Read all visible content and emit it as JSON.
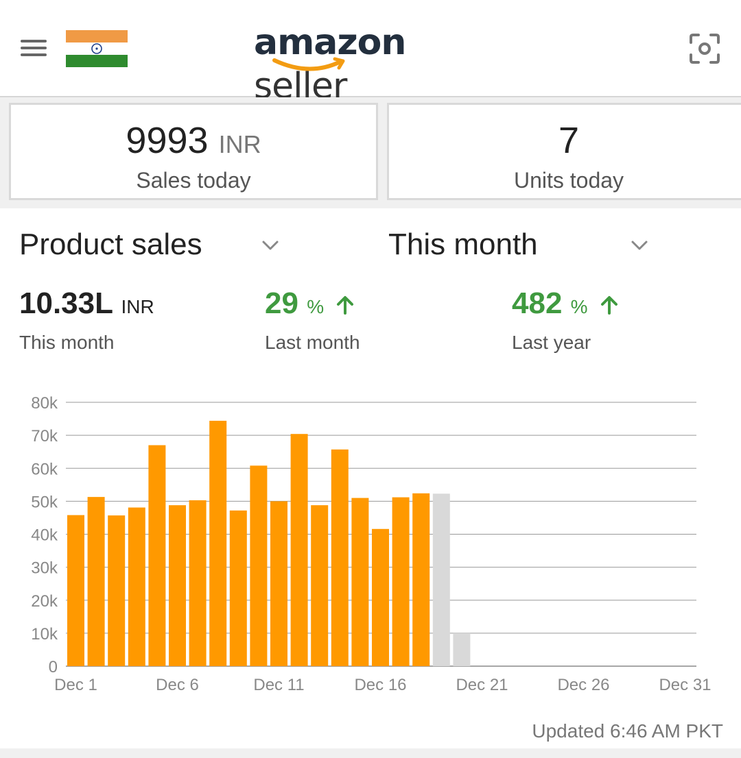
{
  "header": {
    "logo_primary": "amazon",
    "logo_secondary": "seller",
    "menu_icon": "hamburger-menu-icon",
    "flag_icon": "india-flag-icon",
    "scan_icon": "camera-scan-icon",
    "colors": {
      "logo_dark": "#232f3e",
      "smile": "#f39c12"
    }
  },
  "stats": {
    "sales": {
      "value": "9993",
      "unit": "INR",
      "label": "Sales today"
    },
    "units": {
      "value": "7",
      "label": "Units today"
    }
  },
  "selectors": {
    "metric": {
      "label": "Product sales",
      "icon": "chevron-down-icon"
    },
    "period": {
      "label": "This month",
      "icon": "chevron-down-icon"
    }
  },
  "summary": {
    "total": {
      "value": "10.33L",
      "unit": "INR",
      "label": "This month"
    },
    "vs_last_month": {
      "value": "29",
      "unit": "%",
      "label": "Last month",
      "icon": "arrow-up-icon"
    },
    "vs_last_year": {
      "value": "482",
      "unit": "%",
      "label": "Last year",
      "icon": "arrow-up-icon"
    },
    "colors": {
      "positive": "#3f9a3f"
    }
  },
  "chart_data": {
    "type": "bar",
    "title": "",
    "xlabel": "",
    "ylabel": "",
    "ylim": [
      0,
      80000
    ],
    "grid": true,
    "y_ticks": [
      "0",
      "10k",
      "20k",
      "30k",
      "40k",
      "50k",
      "60k",
      "70k",
      "80k"
    ],
    "x_ticks": [
      "Dec 1",
      "Dec 6",
      "Dec 11",
      "Dec 16",
      "Dec 21",
      "Dec 26",
      "Dec 31"
    ],
    "categories": [
      "Dec 1",
      "Dec 2",
      "Dec 3",
      "Dec 4",
      "Dec 5",
      "Dec 6",
      "Dec 7",
      "Dec 8",
      "Dec 9",
      "Dec 10",
      "Dec 11",
      "Dec 12",
      "Dec 13",
      "Dec 14",
      "Dec 15",
      "Dec 16",
      "Dec 17",
      "Dec 18",
      "Dec 19",
      "Dec 20"
    ],
    "series": [
      {
        "color": "#ff9900",
        "values": [
          45800,
          51300,
          45700,
          48100,
          67000,
          48800,
          50300,
          74400,
          47200,
          60800,
          50000,
          70400,
          48800,
          65700,
          51000,
          41600,
          51200,
          52400,
          null,
          null
        ]
      },
      {
        "color": "#d9d9d9",
        "values": [
          null,
          null,
          null,
          null,
          null,
          null,
          null,
          null,
          null,
          null,
          null,
          null,
          null,
          null,
          null,
          null,
          null,
          null,
          52300,
          10000
        ]
      }
    ]
  },
  "footer": {
    "updated": "Updated 6:46 AM PKT"
  }
}
